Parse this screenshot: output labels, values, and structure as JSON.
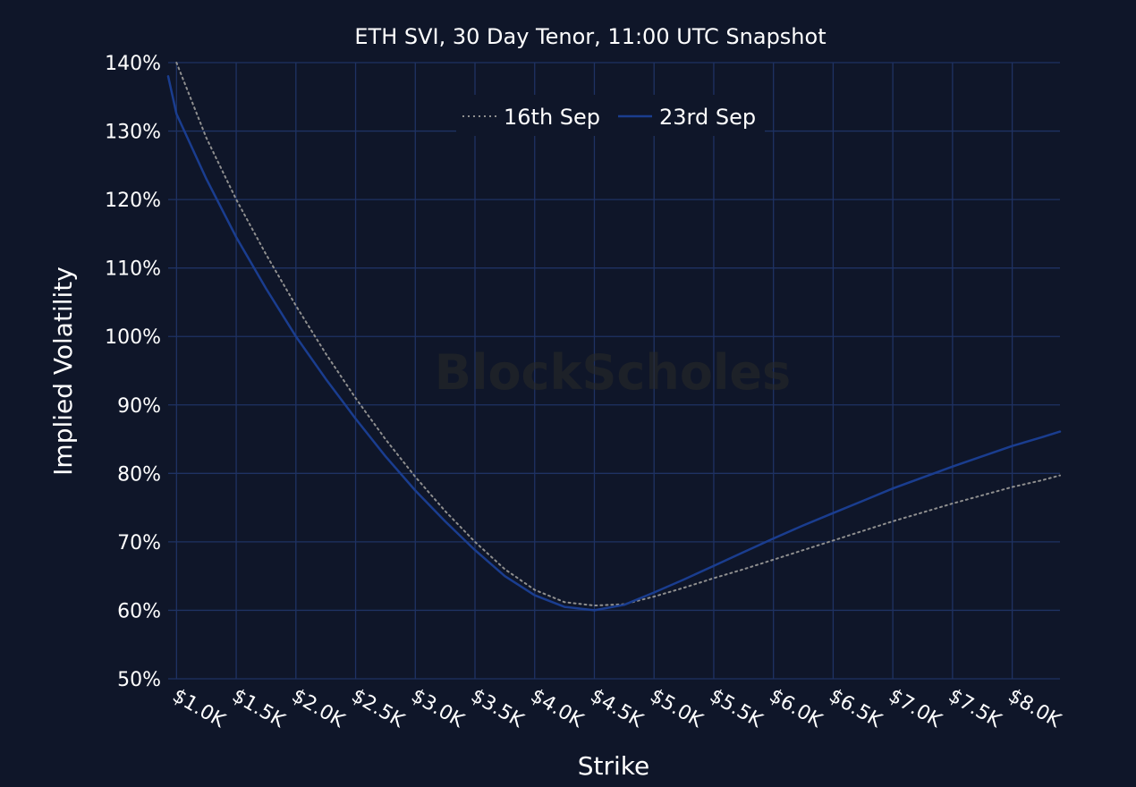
{
  "chart_data": {
    "type": "line",
    "title": "ETH SVI, 30 Day Tenor, 11:00 UTC Snapshot",
    "xlabel": "Strike",
    "ylabel": "Implied Volatility",
    "watermark": "BlockScholes",
    "x_tick_labels": [
      "$1.0K",
      "$1.5K",
      "$2.0K",
      "$2.5K",
      "$3.0K",
      "$3.5K",
      "$4.0K",
      "$4.5K",
      "$5.0K",
      "$5.5K",
      "$6.0K",
      "$6.5K",
      "$7.0K",
      "$7.5K",
      "$8.0K"
    ],
    "x_ticks": [
      1000,
      1500,
      2000,
      2500,
      3000,
      3500,
      4000,
      4500,
      5000,
      5500,
      6000,
      6500,
      7000,
      7500,
      8000
    ],
    "y_tick_labels": [
      "50%",
      "60%",
      "70%",
      "80%",
      "90%",
      "100%",
      "110%",
      "120%",
      "130%",
      "140%"
    ],
    "y_ticks": [
      50,
      60,
      70,
      80,
      90,
      100,
      110,
      120,
      130,
      140
    ],
    "xlim": [
      930,
      8400
    ],
    "ylim": [
      50,
      140
    ],
    "grid": true,
    "legend_position": "top-center",
    "series": [
      {
        "name": "16th Sep",
        "style": "dotted",
        "color": "#8f8f8f",
        "x": [
          1000,
          1250,
          1500,
          1750,
          2000,
          2250,
          2500,
          2750,
          3000,
          3250,
          3500,
          3750,
          4000,
          4250,
          4500,
          4750,
          5000,
          5250,
          5500,
          5750,
          6000,
          6250,
          6500,
          6750,
          7000,
          7250,
          7500,
          7750,
          8000,
          8250,
          8400
        ],
        "y": [
          140,
          129,
          120,
          112,
          104.5,
          97.5,
          91,
          85,
          79.5,
          74.5,
          70,
          66,
          63,
          61.2,
          60.7,
          60.9,
          62,
          63.3,
          64.7,
          66,
          67.4,
          68.8,
          70.2,
          71.6,
          73,
          74.3,
          75.6,
          76.8,
          78,
          79,
          79.7
        ]
      },
      {
        "name": "23rd Sep",
        "style": "solid",
        "color": "#1a3d8f",
        "x": [
          930,
          1000,
          1250,
          1500,
          1750,
          2000,
          2250,
          2500,
          2750,
          3000,
          3250,
          3500,
          3750,
          4000,
          4250,
          4500,
          4750,
          5000,
          5250,
          5500,
          5750,
          6000,
          6250,
          6500,
          6750,
          7000,
          7250,
          7500,
          7750,
          8000,
          8250,
          8400
        ],
        "y": [
          138,
          132.5,
          123,
          114.5,
          107,
          100,
          93.8,
          88,
          82.5,
          77.5,
          73,
          68.8,
          65,
          62.2,
          60.5,
          60,
          60.8,
          62.6,
          64.5,
          66.5,
          68.5,
          70.5,
          72.4,
          74.2,
          76,
          77.8,
          79.4,
          81,
          82.5,
          84,
          85.3,
          86.1
        ]
      }
    ]
  }
}
